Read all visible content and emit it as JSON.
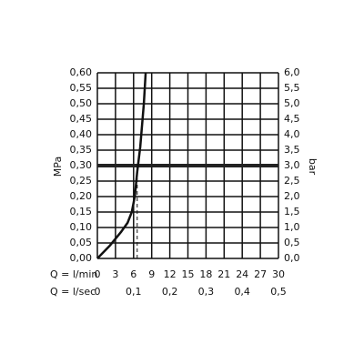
{
  "chart_data": {
    "type": "line",
    "y_label": "MPa",
    "y2_label": "bar",
    "x_label": "Q = l/min",
    "x2_label": "Q = l/sec",
    "series": [
      {
        "color": "#111111",
        "x": [
          0,
          2,
          3.9,
          5,
          5.7,
          6.2,
          6.6,
          7.1,
          7.7,
          8
        ],
        "values": [
          0,
          0.04,
          0.085,
          0.115,
          0.15,
          0.2,
          0.28,
          0.36,
          0.5,
          0.6
        ]
      }
    ],
    "xlim": [
      0,
      30
    ],
    "xticks": [
      0,
      3,
      6,
      9,
      12,
      15,
      18,
      21,
      24,
      27,
      30
    ],
    "x2lim": [
      0,
      0.5
    ],
    "x2ticks": [
      0,
      {
        "value": 0.1,
        "label": "0,1"
      },
      {
        "value": 0.2,
        "label": "0,2"
      },
      {
        "value": 0.3,
        "label": "0,3"
      },
      {
        "value": 0.4,
        "label": "0,4"
      },
      {
        "value": 0.5,
        "label": "0,5"
      }
    ],
    "ylim": [
      0,
      0.6
    ],
    "yticks": [
      {
        "value": 0,
        "label": "0,00"
      },
      {
        "value": 0.05,
        "label": "0,05"
      },
      {
        "value": 0.1,
        "label": "0,10"
      },
      {
        "value": 0.15,
        "label": "0,15"
      },
      {
        "value": 0.2,
        "label": "0,20"
      },
      {
        "value": 0.25,
        "label": "0,25"
      },
      {
        "value": 0.3,
        "label": "0,30"
      },
      {
        "value": 0.35,
        "label": "0,35"
      },
      {
        "value": 0.4,
        "label": "0,40"
      },
      {
        "value": 0.45,
        "label": "0,45"
      },
      {
        "value": 0.5,
        "label": "0,50"
      },
      {
        "value": 0.55,
        "label": "0,55"
      },
      {
        "value": 0.6,
        "label": "0,60"
      }
    ],
    "y2lim": [
      0,
      6
    ],
    "y2ticks": [
      {
        "value": 0,
        "label": "0,0"
      },
      {
        "value": 0.5,
        "label": "0,5"
      },
      {
        "value": 1,
        "label": "1,0"
      },
      {
        "value": 1.5,
        "label": "1,5"
      },
      {
        "value": 2,
        "label": "2,0"
      },
      {
        "value": 2.5,
        "label": "2,5"
      },
      {
        "value": 3,
        "label": "3,0"
      },
      {
        "value": 3.5,
        "label": "3,5"
      },
      {
        "value": 4,
        "label": "4,0"
      },
      {
        "value": 4.5,
        "label": "4,5"
      },
      {
        "value": 5,
        "label": "5,0"
      },
      {
        "value": 5.5,
        "label": "5,5"
      },
      {
        "value": 6,
        "label": "6,0"
      }
    ],
    "grid": true,
    "reference_lines": {
      "y": 0.3,
      "x": 6.6
    }
  }
}
